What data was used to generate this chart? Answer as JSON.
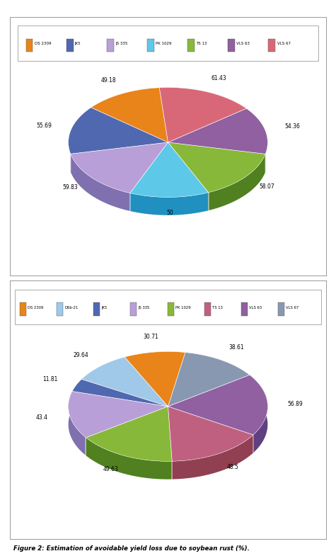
{
  "chart1": {
    "labels": [
      "DS 2309",
      "JK5",
      "JS 335",
      "PK 1029",
      "TS 13",
      "VLS 63",
      "VLS 67"
    ],
    "values": [
      49.18,
      55.69,
      59.83,
      50.0,
      58.07,
      54.36,
      61.43
    ],
    "colors": [
      "#E8841A",
      "#5068B0",
      "#B89FD8",
      "#5EC8E8",
      "#88B83A",
      "#9060A0",
      "#D86878"
    ],
    "side_colors": [
      "#A05010",
      "#2840A0",
      "#8070B0",
      "#2090C0",
      "#508020",
      "#604080",
      "#A03040"
    ],
    "startangle": 95
  },
  "chart2": {
    "labels": [
      "DS 2309",
      "DSb-21",
      "JK5",
      "JS 335",
      "PK 1029",
      "TS 13",
      "VLS 63",
      "VLS 67"
    ],
    "values": [
      30.71,
      29.64,
      11.81,
      43.4,
      49.63,
      48.5,
      56.89,
      38.61
    ],
    "colors": [
      "#E8841A",
      "#A0C8E8",
      "#5068B0",
      "#B89FD8",
      "#88B83A",
      "#C06080",
      "#9060A0",
      "#8898B0"
    ],
    "side_colors": [
      "#A05010",
      "#6090C0",
      "#2840A0",
      "#8070B0",
      "#508020",
      "#904050",
      "#604080",
      "#506080"
    ],
    "startangle": 80
  },
  "caption": "Figure 2: Estimation of avoidable yield loss due to soybean rust (%).",
  "bg_color": "#FFFFFF"
}
